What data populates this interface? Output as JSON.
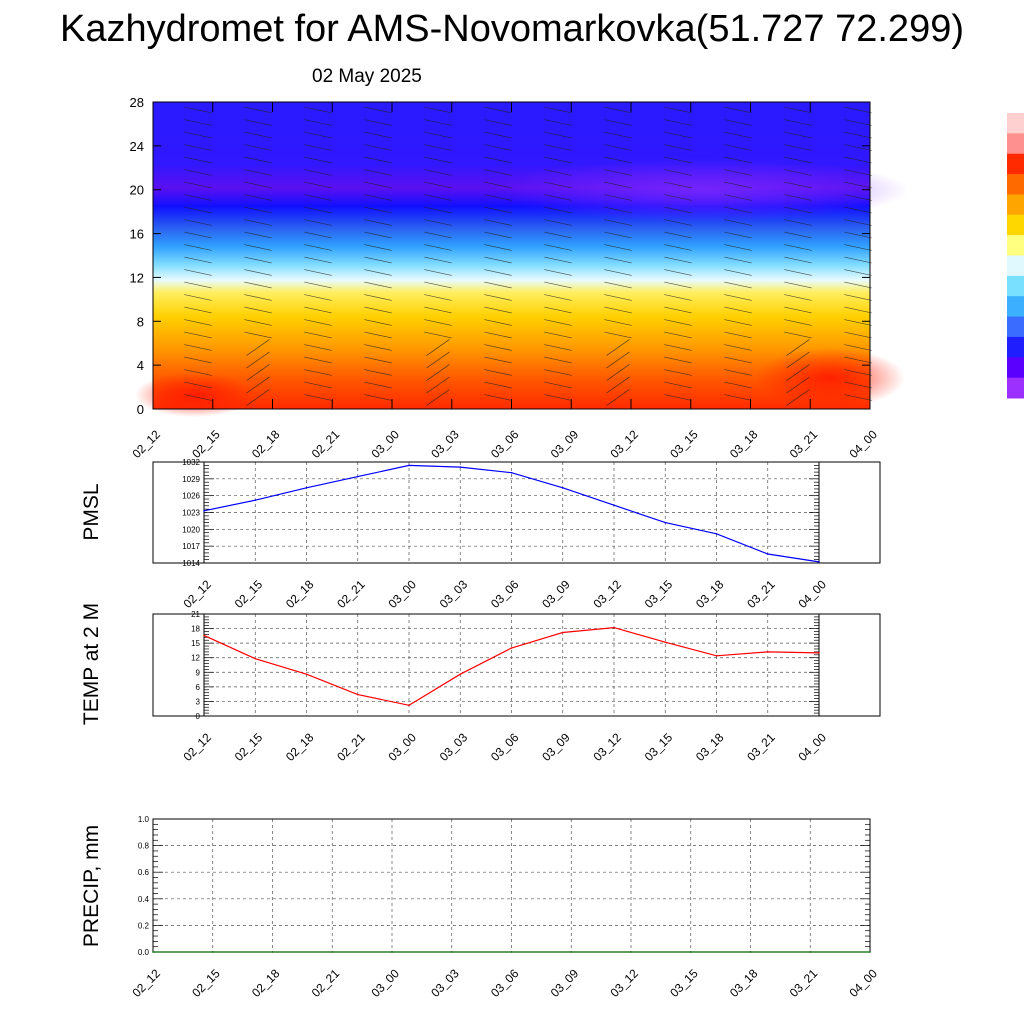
{
  "title": "Kazhydromet for AMS-Novomarkovka(51.727 72.299)",
  "subtitle": "02 May 2025",
  "colors": {
    "pmsl": "#0000ff",
    "temp": "#ff0000",
    "precip": "#006400"
  },
  "chart_data": [
    {
      "type": "heatmap",
      "title": "",
      "x_tick_labels": [
        "02_12",
        "02_15",
        "02_18",
        "02_21",
        "03_00",
        "03_03",
        "03_06",
        "03_09",
        "03_12",
        "03_15",
        "03_18",
        "03_21",
        "04_00"
      ],
      "y_tick_labels": [
        "0",
        "4",
        "8",
        "12",
        "16",
        "20",
        "24",
        "28"
      ],
      "ylim": [
        0,
        28
      ],
      "colorbar": [
        "#9b30ff",
        "#5a00ff",
        "#1e1eff",
        "#3a6cff",
        "#3cb0ff",
        "#7ae0ff",
        "#e0f8ff",
        "#ffff80",
        "#ffd700",
        "#ffa500",
        "#ff6a00",
        "#ff2a00",
        "#ff9090",
        "#ffd0d0"
      ]
    },
    {
      "type": "line",
      "ylabel": "PMSL",
      "x_tick_labels": [
        "02_12",
        "02_15",
        "02_18",
        "02_21",
        "03_00",
        "03_03",
        "03_06",
        "03_09",
        "03_12",
        "03_15",
        "03_18",
        "03_21",
        "04_00"
      ],
      "y_tick_labels": [
        "1014",
        "1017",
        "1020",
        "1023",
        "1026",
        "1029",
        "1032"
      ],
      "ylim": [
        1014,
        1032
      ],
      "x": [
        0,
        1,
        2,
        3,
        4,
        5,
        6,
        7,
        8,
        9,
        10,
        11,
        12
      ],
      "values": [
        1023.3,
        1025.2,
        1027.4,
        1029.4,
        1031.4,
        1031.1,
        1030.1,
        1027.4,
        1024.3,
        1021.2,
        1019.2,
        1015.6,
        1014.2
      ]
    },
    {
      "type": "line",
      "ylabel": "TEMP at 2 M",
      "x_tick_labels": [
        "02_12",
        "02_15",
        "02_18",
        "02_21",
        "03_00",
        "03_03",
        "03_06",
        "03_09",
        "03_12",
        "03_15",
        "03_18",
        "03_21",
        "04_00"
      ],
      "y_tick_labels": [
        "0",
        "3",
        "6",
        "9",
        "12",
        "15",
        "18",
        "21"
      ],
      "ylim": [
        0,
        21
      ],
      "x": [
        0,
        1,
        2,
        3,
        4,
        5,
        6,
        7,
        8,
        9,
        10,
        11,
        12
      ],
      "values": [
        16.6,
        11.8,
        8.6,
        4.4,
        2.2,
        8.6,
        14.0,
        17.2,
        18.2,
        15.2,
        12.4,
        13.2,
        13.0
      ]
    },
    {
      "type": "line",
      "ylabel": "PRECIP, mm",
      "x_tick_labels": [
        "02_12",
        "02_15",
        "02_18",
        "02_21",
        "03_00",
        "03_03",
        "03_06",
        "03_09",
        "03_12",
        "03_15",
        "03_18",
        "03_21",
        "04_00"
      ],
      "y_tick_labels": [
        "0.0",
        "0.2",
        "0.4",
        "0.6",
        "0.8",
        "1.0"
      ],
      "ylim": [
        0,
        1
      ],
      "x": [
        0,
        1,
        2,
        3,
        4,
        5,
        6,
        7,
        8,
        9,
        10,
        11,
        12
      ],
      "values": [
        0,
        0,
        0,
        0,
        0,
        0,
        0,
        0,
        0,
        0,
        0,
        0,
        0
      ]
    }
  ]
}
